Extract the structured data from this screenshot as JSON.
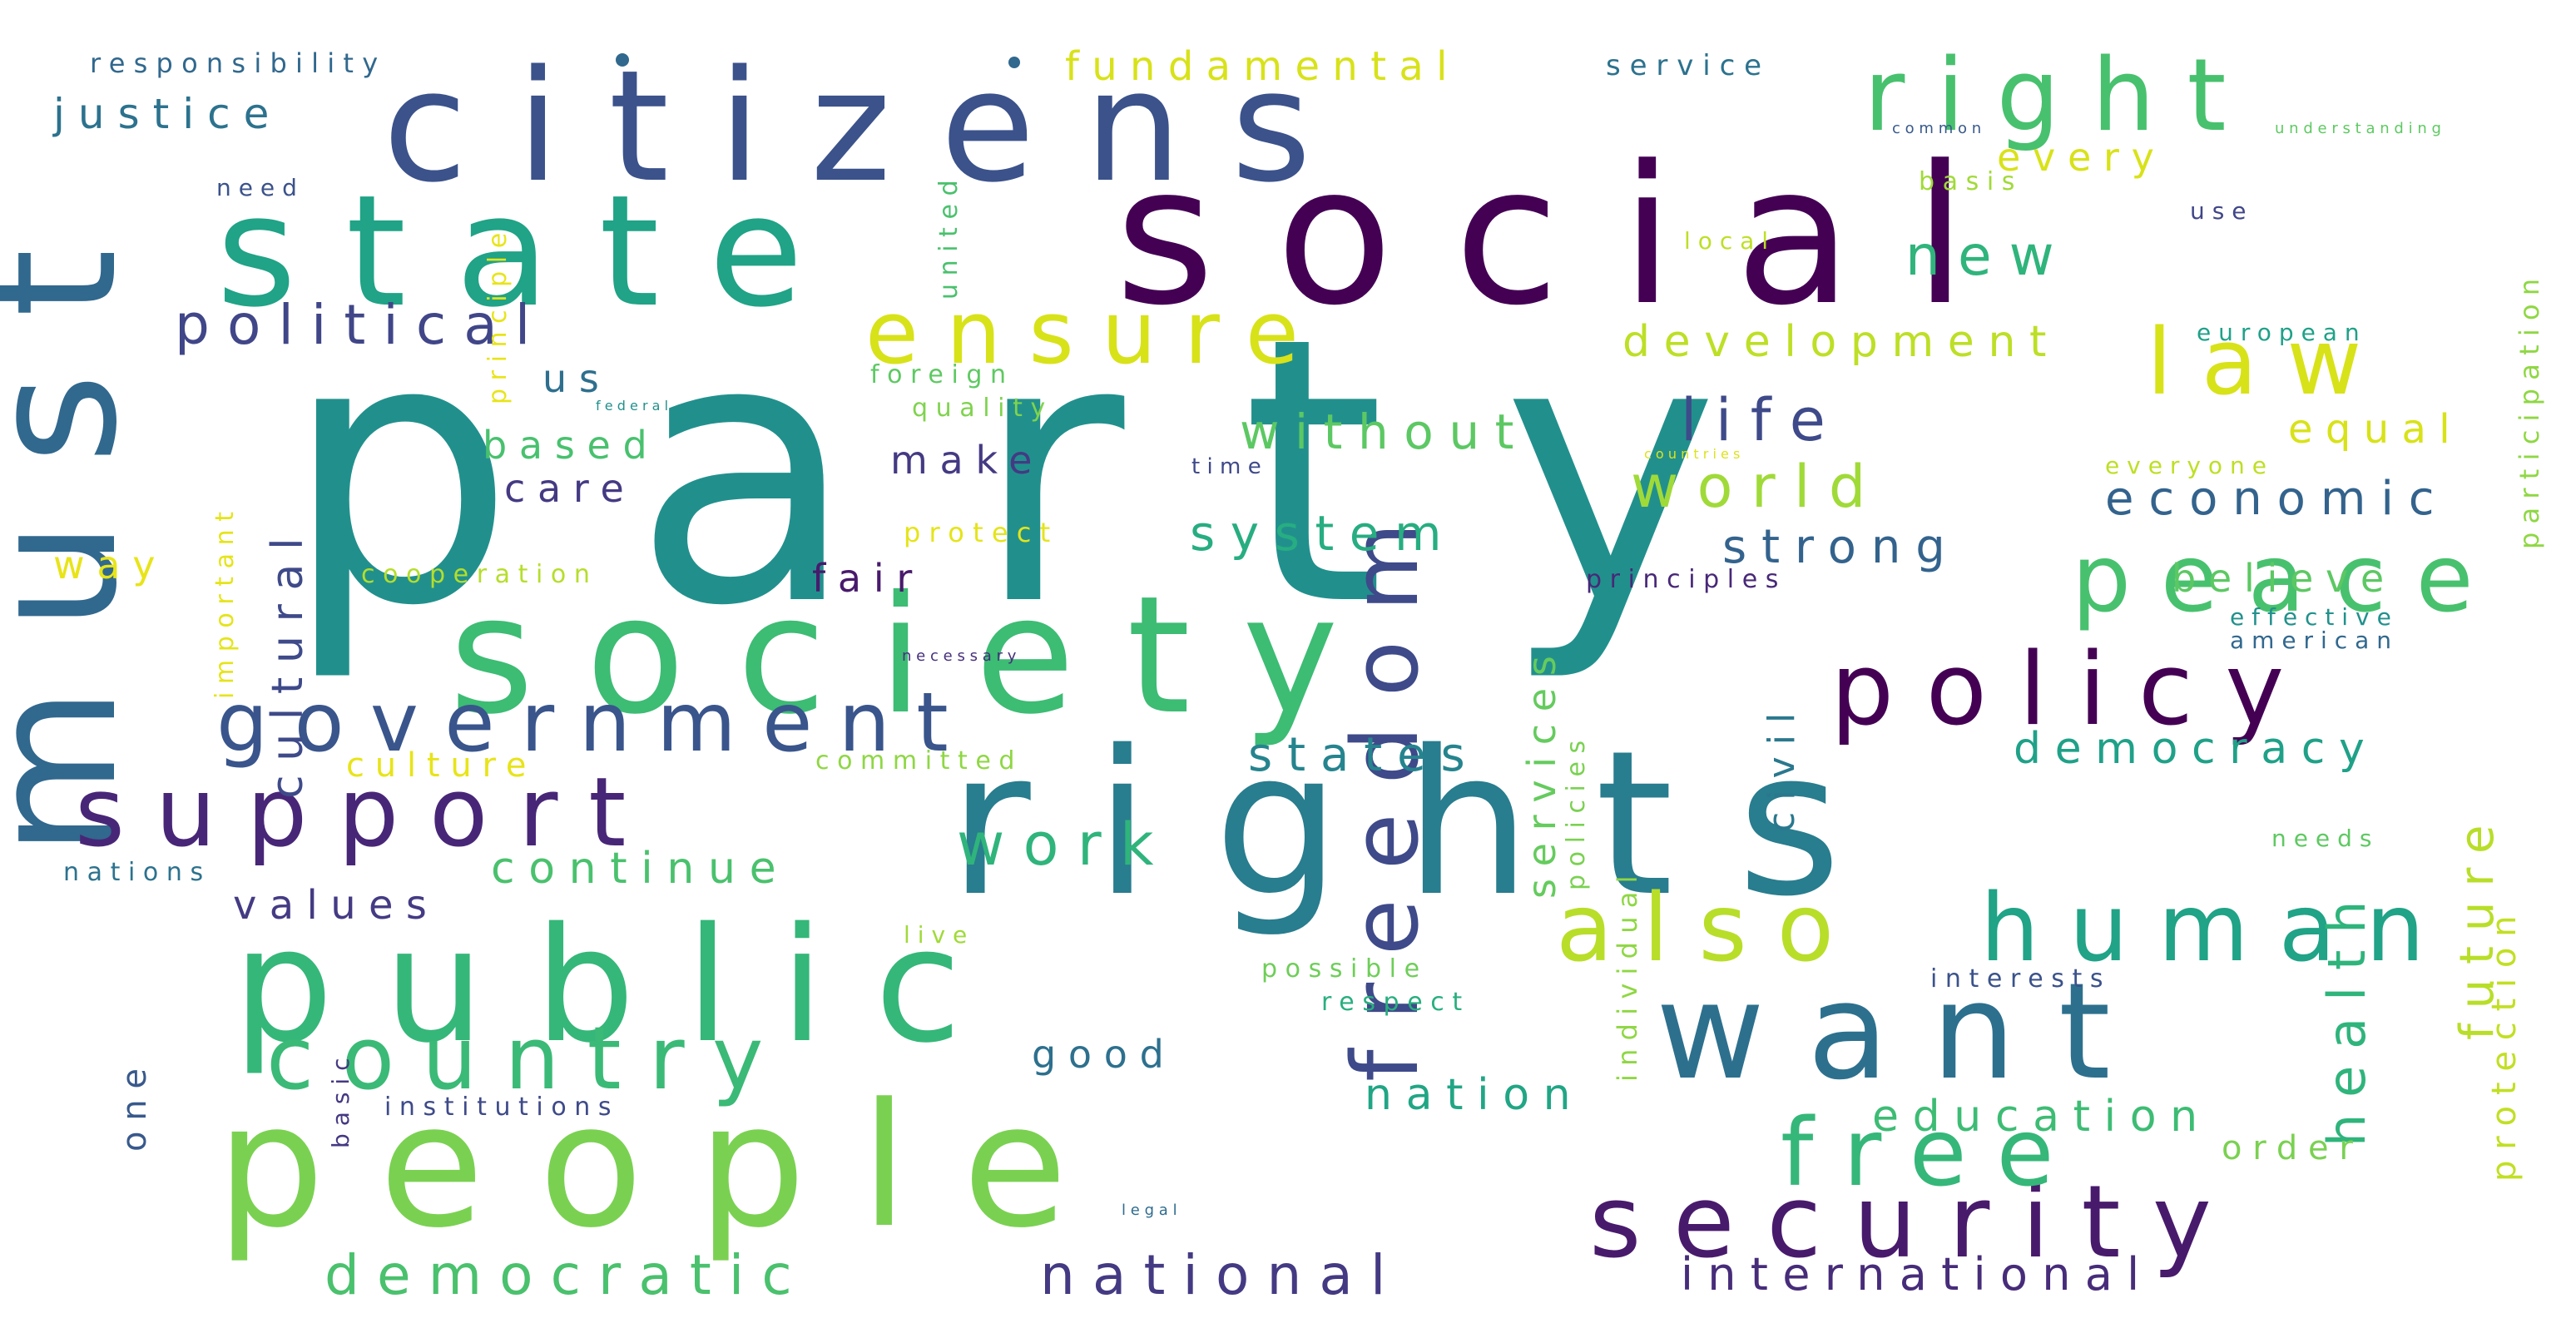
{
  "words": [
    {
      "text": "party",
      "color": "#21908d"
    },
    {
      "text": "must",
      "color": "#31688e"
    },
    {
      "text": "social",
      "color": "#440154"
    },
    {
      "text": "citizens",
      "color": "#3b528b"
    },
    {
      "text": "state",
      "color": "#20a386"
    },
    {
      "text": "society",
      "color": "#3dbc74"
    },
    {
      "text": "rights",
      "color": "#287d8e"
    },
    {
      "text": "right",
      "color": "#48c16e"
    },
    {
      "text": "public",
      "color": "#35b779"
    },
    {
      "text": "people",
      "color": "#7ad151"
    },
    {
      "text": "freedom",
      "color": "#3e4a89"
    },
    {
      "text": "want",
      "color": "#2d708e"
    },
    {
      "text": "support",
      "color": "#482677"
    },
    {
      "text": "government",
      "color": "#39558c"
    },
    {
      "text": "policy",
      "color": "#440154"
    },
    {
      "text": "ensure",
      "color": "#d8e219"
    },
    {
      "text": "country",
      "color": "#3aba76"
    },
    {
      "text": "security",
      "color": "#481a6c"
    },
    {
      "text": "free",
      "color": "#35b779"
    },
    {
      "text": "also",
      "color": "#b8de29"
    },
    {
      "text": "human",
      "color": "#20a386"
    },
    {
      "text": "peace",
      "color": "#48c16e"
    },
    {
      "text": "law",
      "color": "#d8e219"
    },
    {
      "text": "political",
      "color": "#404688"
    },
    {
      "text": "development",
      "color": "#bddf26"
    },
    {
      "text": "life",
      "color": "#3e4a89"
    },
    {
      "text": "world",
      "color": "#a0da39"
    },
    {
      "text": "new",
      "color": "#2fb47c"
    },
    {
      "text": "work",
      "color": "#2fb47c"
    },
    {
      "text": "national",
      "color": "#443a83"
    },
    {
      "text": "democratic",
      "color": "#4ac16d"
    },
    {
      "text": "international",
      "color": "#472c7a"
    },
    {
      "text": "cultural",
      "color": "#3e4a89"
    },
    {
      "text": "system",
      "color": "#27ad81"
    },
    {
      "text": "states",
      "color": "#25848e"
    },
    {
      "text": "without",
      "color": "#5cc863"
    },
    {
      "text": "strong",
      "color": "#33638d"
    },
    {
      "text": "economic",
      "color": "#33638d"
    },
    {
      "text": "continue",
      "color": "#4ac16d"
    },
    {
      "text": "values",
      "color": "#443b84"
    },
    {
      "text": "democracy",
      "color": "#1fa188"
    },
    {
      "text": "education",
      "color": "#3dbc74"
    },
    {
      "text": "health",
      "color": "#2fb47c"
    },
    {
      "text": "future",
      "color": "#b8de29"
    },
    {
      "text": "services",
      "color": "#65cb5e"
    },
    {
      "text": "civil",
      "color": "#2a788e"
    },
    {
      "text": "nation",
      "color": "#21a685"
    },
    {
      "text": "justice",
      "color": "#2c728e"
    },
    {
      "text": "fundamental",
      "color": "#d8e219"
    },
    {
      "text": "every",
      "color": "#d8e219"
    },
    {
      "text": "equal",
      "color": "#d8e219"
    },
    {
      "text": "based",
      "color": "#48c16e"
    },
    {
      "text": "care",
      "color": "#443a83"
    },
    {
      "text": "make",
      "color": "#443a83"
    },
    {
      "text": "fair",
      "color": "#481a6c"
    },
    {
      "text": "believe",
      "color": "#5cc863"
    },
    {
      "text": "us",
      "color": "#2e6f8e"
    },
    {
      "text": "way",
      "color": "#e8e419"
    },
    {
      "text": "good",
      "color": "#2d708e"
    },
    {
      "text": "culture",
      "color": "#e8e419"
    },
    {
      "text": "order",
      "color": "#7ad151"
    },
    {
      "text": "service",
      "color": "#2c728e"
    },
    {
      "text": "protection",
      "color": "#c2df23"
    },
    {
      "text": "participation",
      "color": "#8fd744"
    },
    {
      "text": "responsibility",
      "color": "#31688e"
    },
    {
      "text": "principle",
      "color": "#e8e419"
    },
    {
      "text": "important",
      "color": "#e5e419"
    },
    {
      "text": "united",
      "color": "#4ac16d"
    },
    {
      "text": "individual",
      "color": "#8fd744"
    },
    {
      "text": "policies",
      "color": "#7ad151"
    },
    {
      "text": "one",
      "color": "#38598c"
    },
    {
      "text": "basic",
      "color": "#443983"
    },
    {
      "text": "need",
      "color": "#3b528b"
    },
    {
      "text": "local",
      "color": "#bddf26"
    },
    {
      "text": "basis",
      "color": "#a0da39"
    },
    {
      "text": "use",
      "color": "#404688"
    },
    {
      "text": "foreign",
      "color": "#5ec962"
    },
    {
      "text": "quality",
      "color": "#7fd34e"
    },
    {
      "text": "time",
      "color": "#3e4989"
    },
    {
      "text": "protect",
      "color": "#e5e419"
    },
    {
      "text": "cooperation",
      "color": "#b5de2b"
    },
    {
      "text": "principles",
      "color": "#482878"
    },
    {
      "text": "committed",
      "color": "#8fd744"
    },
    {
      "text": "live",
      "color": "#a0da39"
    },
    {
      "text": "possible",
      "color": "#6ece58"
    },
    {
      "text": "respect",
      "color": "#29af7f"
    },
    {
      "text": "institutions",
      "color": "#3e4a89"
    },
    {
      "text": "nations",
      "color": "#2c728e"
    },
    {
      "text": "interests",
      "color": "#3b528b"
    },
    {
      "text": "needs",
      "color": "#5ec962"
    },
    {
      "text": "european",
      "color": "#1fa188"
    },
    {
      "text": "everyone",
      "color": "#bddf26"
    },
    {
      "text": "effective",
      "color": "#21918c"
    },
    {
      "text": "american",
      "color": "#31688e"
    },
    {
      "text": "common",
      "color": "#38598c"
    },
    {
      "text": "understanding",
      "color": "#5ec962"
    },
    {
      "text": "federal",
      "color": "#21918c"
    },
    {
      "text": "countries",
      "color": "#dde318"
    },
    {
      "text": "necessary",
      "color": "#462f7c"
    },
    {
      "text": "legal",
      "color": "#2f6c8e"
    }
  ]
}
